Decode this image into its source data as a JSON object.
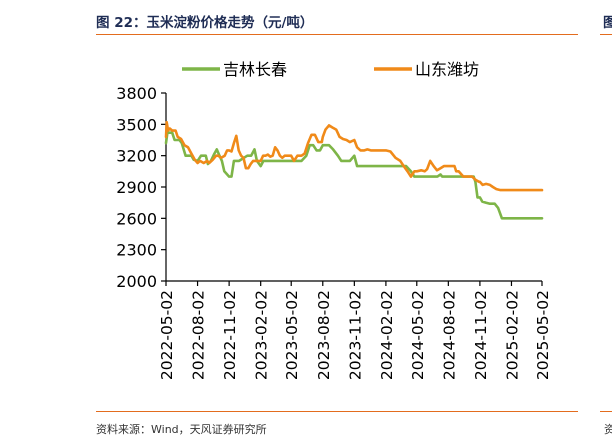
{
  "figure": {
    "title": "图 22：玉米淀粉价格走势（元/吨）",
    "source": "资料来源：Wind，天风证券研究所",
    "edge_glyph_top": "图",
    "edge_glyph_bottom": "资"
  },
  "colors": {
    "accent_rule": "#e36c1e",
    "series_jilin": "#7eb548",
    "series_shandong": "#f08a19",
    "title_text": "#1f2d55"
  },
  "chart_data": {
    "type": "line",
    "title": "",
    "xlabel": "",
    "ylabel": "",
    "ylim": [
      2000,
      3800
    ],
    "xlim": [
      "2022-05-02",
      "2025-05-02"
    ],
    "yticks": [
      2000,
      2300,
      2600,
      2900,
      3200,
      3500,
      3800
    ],
    "xticks": [
      "2022-05-02",
      "2022-08-02",
      "2022-11-02",
      "2023-02-02",
      "2023-05-02",
      "2023-08-02",
      "2023-11-02",
      "2024-02-02",
      "2024-05-02",
      "2024-08-02",
      "2024-11-02",
      "2025-02-02",
      "2025-05-02"
    ],
    "legend_position": "top",
    "grid": false,
    "series": [
      {
        "name": "吉林长春",
        "color": "#7eb548",
        "points": [
          [
            "2022-05-02",
            3320
          ],
          [
            "2022-05-06",
            3420
          ],
          [
            "2022-05-20",
            3420
          ],
          [
            "2022-05-27",
            3350
          ],
          [
            "2022-06-10",
            3350
          ],
          [
            "2022-06-17",
            3320
          ],
          [
            "2022-06-28",
            3200
          ],
          [
            "2022-07-15",
            3200
          ],
          [
            "2022-07-22",
            3160
          ],
          [
            "2022-08-02",
            3150
          ],
          [
            "2022-08-12",
            3200
          ],
          [
            "2022-08-26",
            3200
          ],
          [
            "2022-09-01",
            3120
          ],
          [
            "2022-09-10",
            3150
          ],
          [
            "2022-09-20",
            3220
          ],
          [
            "2022-09-27",
            3260
          ],
          [
            "2022-10-05",
            3200
          ],
          [
            "2022-10-12",
            3150
          ],
          [
            "2022-10-19",
            3050
          ],
          [
            "2022-11-02",
            3000
          ],
          [
            "2022-11-09",
            3000
          ],
          [
            "2022-11-16",
            3150
          ],
          [
            "2022-12-01",
            3150
          ],
          [
            "2022-12-15",
            3180
          ],
          [
            "2022-12-25",
            3200
          ],
          [
            "2023-01-05",
            3200
          ],
          [
            "2023-01-15",
            3260
          ],
          [
            "2023-01-22",
            3150
          ],
          [
            "2023-02-02",
            3100
          ],
          [
            "2023-02-10",
            3150
          ],
          [
            "2023-03-01",
            3150
          ],
          [
            "2023-04-01",
            3150
          ],
          [
            "2023-05-02",
            3150
          ],
          [
            "2023-06-01",
            3150
          ],
          [
            "2023-06-15",
            3200
          ],
          [
            "2023-06-25",
            3300
          ],
          [
            "2023-07-05",
            3300
          ],
          [
            "2023-07-15",
            3250
          ],
          [
            "2023-07-25",
            3250
          ],
          [
            "2023-08-02",
            3300
          ],
          [
            "2023-08-10",
            3300
          ],
          [
            "2023-08-20",
            3300
          ],
          [
            "2023-09-01",
            3260
          ],
          [
            "2023-09-15",
            3200
          ],
          [
            "2023-09-25",
            3150
          ],
          [
            "2023-10-10",
            3150
          ],
          [
            "2023-10-20",
            3150
          ],
          [
            "2023-11-02",
            3200
          ],
          [
            "2023-11-10",
            3100
          ],
          [
            "2023-11-25",
            3100
          ],
          [
            "2023-12-15",
            3100
          ],
          [
            "2024-01-15",
            3100
          ],
          [
            "2024-02-02",
            3100
          ],
          [
            "2024-03-01",
            3100
          ],
          [
            "2024-04-01",
            3100
          ],
          [
            "2024-04-15",
            3050
          ],
          [
            "2024-04-25",
            3000
          ],
          [
            "2024-05-02",
            3000
          ],
          [
            "2024-06-01",
            3000
          ],
          [
            "2024-07-01",
            3000
          ],
          [
            "2024-07-10",
            3020
          ],
          [
            "2024-07-15",
            3000
          ],
          [
            "2024-08-02",
            3000
          ],
          [
            "2024-09-01",
            3000
          ],
          [
            "2024-10-01",
            3000
          ],
          [
            "2024-10-15",
            3000
          ],
          [
            "2024-10-20",
            2950
          ],
          [
            "2024-10-26",
            2800
          ],
          [
            "2024-11-02",
            2800
          ],
          [
            "2024-11-09",
            2760
          ],
          [
            "2024-11-20",
            2750
          ],
          [
            "2024-12-01",
            2740
          ],
          [
            "2024-12-15",
            2740
          ],
          [
            "2024-12-25",
            2700
          ],
          [
            "2025-01-05",
            2600
          ],
          [
            "2025-01-15",
            2600
          ],
          [
            "2025-02-02",
            2600
          ],
          [
            "2025-03-01",
            2600
          ],
          [
            "2025-04-01",
            2600
          ],
          [
            "2025-05-02",
            2600
          ]
        ]
      },
      {
        "name": "山东潍坊",
        "color": "#f08a19",
        "points": [
          [
            "2022-05-02",
            3380
          ],
          [
            "2022-05-04",
            3520
          ],
          [
            "2022-05-08",
            3440
          ],
          [
            "2022-05-13",
            3460
          ],
          [
            "2022-05-20",
            3440
          ],
          [
            "2022-05-30",
            3440
          ],
          [
            "2022-06-05",
            3380
          ],
          [
            "2022-06-15",
            3360
          ],
          [
            "2022-06-25",
            3300
          ],
          [
            "2022-07-05",
            3280
          ],
          [
            "2022-07-15",
            3220
          ],
          [
            "2022-07-25",
            3160
          ],
          [
            "2022-08-02",
            3130
          ],
          [
            "2022-08-09",
            3150
          ],
          [
            "2022-08-20",
            3130
          ],
          [
            "2022-08-30",
            3150
          ],
          [
            "2022-09-05",
            3130
          ],
          [
            "2022-09-15",
            3160
          ],
          [
            "2022-09-25",
            3200
          ],
          [
            "2022-10-01",
            3200
          ],
          [
            "2022-10-10",
            3180
          ],
          [
            "2022-10-20",
            3200
          ],
          [
            "2022-10-27",
            3250
          ],
          [
            "2022-11-02",
            3250
          ],
          [
            "2022-11-09",
            3240
          ],
          [
            "2022-11-16",
            3320
          ],
          [
            "2022-11-23",
            3390
          ],
          [
            "2022-11-30",
            3250
          ],
          [
            "2022-12-07",
            3200
          ],
          [
            "2022-12-14",
            3180
          ],
          [
            "2022-12-21",
            3080
          ],
          [
            "2022-12-28",
            3080
          ],
          [
            "2023-01-04",
            3120
          ],
          [
            "2023-01-11",
            3150
          ],
          [
            "2023-01-18",
            3150
          ],
          [
            "2023-01-25",
            3150
          ],
          [
            "2023-02-02",
            3150
          ],
          [
            "2023-02-09",
            3200
          ],
          [
            "2023-02-16",
            3200
          ],
          [
            "2023-02-23",
            3210
          ],
          [
            "2023-03-02",
            3190
          ],
          [
            "2023-03-09",
            3200
          ],
          [
            "2023-03-16",
            3280
          ],
          [
            "2023-03-23",
            3250
          ],
          [
            "2023-03-30",
            3200
          ],
          [
            "2023-04-06",
            3180
          ],
          [
            "2023-04-13",
            3200
          ],
          [
            "2023-04-20",
            3200
          ],
          [
            "2023-04-27",
            3200
          ],
          [
            "2023-05-02",
            3200
          ],
          [
            "2023-05-10",
            3150
          ],
          [
            "2023-05-20",
            3200
          ],
          [
            "2023-06-01",
            3200
          ],
          [
            "2023-06-10",
            3220
          ],
          [
            "2023-06-20",
            3320
          ],
          [
            "2023-06-30",
            3400
          ],
          [
            "2023-07-10",
            3400
          ],
          [
            "2023-07-20",
            3330
          ],
          [
            "2023-07-30",
            3330
          ],
          [
            "2023-08-02",
            3380
          ],
          [
            "2023-08-10",
            3450
          ],
          [
            "2023-08-20",
            3490
          ],
          [
            "2023-08-30",
            3470
          ],
          [
            "2023-09-10",
            3450
          ],
          [
            "2023-09-20",
            3380
          ],
          [
            "2023-09-30",
            3360
          ],
          [
            "2023-10-10",
            3350
          ],
          [
            "2023-10-20",
            3330
          ],
          [
            "2023-11-02",
            3350
          ],
          [
            "2023-11-10",
            3280
          ],
          [
            "2023-11-20",
            3250
          ],
          [
            "2023-12-01",
            3250
          ],
          [
            "2023-12-10",
            3260
          ],
          [
            "2023-12-20",
            3250
          ],
          [
            "2024-01-01",
            3250
          ],
          [
            "2024-01-15",
            3250
          ],
          [
            "2024-02-02",
            3250
          ],
          [
            "2024-02-15",
            3240
          ],
          [
            "2024-02-25",
            3200
          ],
          [
            "2024-03-01",
            3180
          ],
          [
            "2024-03-15",
            3150
          ],
          [
            "2024-03-25",
            3100
          ],
          [
            "2024-04-05",
            3050
          ],
          [
            "2024-04-15",
            3000
          ],
          [
            "2024-04-25",
            3050
          ],
          [
            "2024-05-02",
            3050
          ],
          [
            "2024-05-15",
            3060
          ],
          [
            "2024-05-25",
            3050
          ],
          [
            "2024-06-01",
            3070
          ],
          [
            "2024-06-10",
            3150
          ],
          [
            "2024-06-20",
            3100
          ],
          [
            "2024-06-30",
            3060
          ],
          [
            "2024-07-10",
            3080
          ],
          [
            "2024-07-20",
            3100
          ],
          [
            "2024-08-02",
            3100
          ],
          [
            "2024-08-10",
            3100
          ],
          [
            "2024-08-20",
            3100
          ],
          [
            "2024-08-25",
            3050
          ],
          [
            "2024-09-01",
            3050
          ],
          [
            "2024-09-15",
            3000
          ],
          [
            "2024-10-01",
            3000
          ],
          [
            "2024-10-10",
            3000
          ],
          [
            "2024-10-20",
            2970
          ],
          [
            "2024-10-30",
            2950
          ],
          [
            "2024-11-02",
            2950
          ],
          [
            "2024-11-10",
            2920
          ],
          [
            "2024-11-20",
            2930
          ],
          [
            "2024-12-01",
            2920
          ],
          [
            "2024-12-10",
            2900
          ],
          [
            "2024-12-20",
            2880
          ],
          [
            "2025-01-01",
            2870
          ],
          [
            "2025-01-15",
            2870
          ],
          [
            "2025-02-02",
            2870
          ],
          [
            "2025-03-01",
            2870
          ],
          [
            "2025-04-01",
            2870
          ],
          [
            "2025-05-02",
            2870
          ]
        ]
      }
    ]
  }
}
